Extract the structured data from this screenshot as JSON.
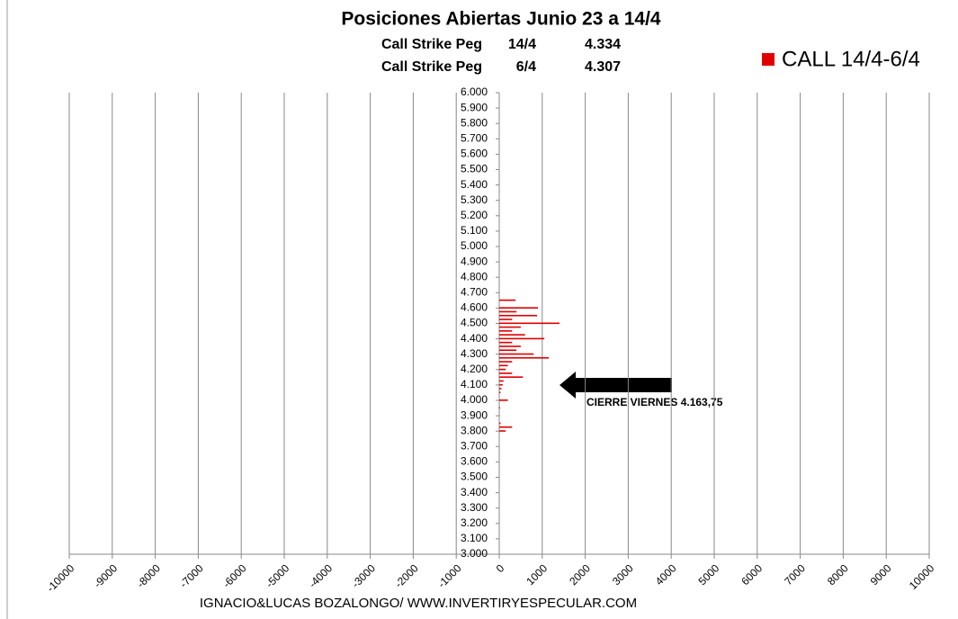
{
  "chart_data": {
    "type": "barh",
    "title": "Posiciones Abiertas Junio 23 a 14/4",
    "peg_rows": [
      {
        "label": "Call Strike Peg",
        "date": "14/4",
        "value": "4.334"
      },
      {
        "label": "Call Strike Peg",
        "date": "6/4",
        "value": "4.307"
      }
    ],
    "annotation": "CIERRE VIERNES 4.163,75",
    "footer": "IGNACIO&LUCAS BOZALONGO/ WWW.INVERTIRYESPECULAR.COM",
    "legend_position": "top-right",
    "grid": true,
    "y": [
      4650,
      4600,
      4575,
      4550,
      4525,
      4500,
      4475,
      4450,
      4425,
      4400,
      4375,
      4350,
      4325,
      4300,
      4275,
      4250,
      4225,
      4200,
      4175,
      4150,
      4125,
      4100,
      4075,
      4050,
      4000,
      3950,
      3900,
      3850,
      3825,
      3800
    ],
    "series": [
      {
        "name": "CALL 14/4-6/4",
        "color": "#e00000",
        "values": [
          380,
          900,
          400,
          880,
          300,
          1400,
          500,
          300,
          600,
          1050,
          300,
          500,
          400,
          800,
          1150,
          300,
          200,
          150,
          300,
          550,
          100,
          80,
          50,
          30,
          200,
          20,
          10,
          30,
          300,
          150
        ]
      }
    ],
    "xlim": [
      -10000,
      10000
    ],
    "xticks": [
      -10000,
      -9000,
      -8000,
      -7000,
      -6000,
      -5000,
      -4000,
      -3000,
      -2000,
      -1000,
      0,
      1000,
      2000,
      3000,
      4000,
      5000,
      6000,
      7000,
      8000,
      9000,
      10000
    ],
    "ylim": [
      3000,
      6000
    ],
    "yticks": [
      {
        "value": 3000,
        "label": "3.000"
      },
      {
        "value": 3100,
        "label": "3.100"
      },
      {
        "value": 3200,
        "label": "3.200"
      },
      {
        "value": 3300,
        "label": "3.300"
      },
      {
        "value": 3400,
        "label": "3.400"
      },
      {
        "value": 3500,
        "label": "3.500"
      },
      {
        "value": 3600,
        "label": "3.600"
      },
      {
        "value": 3700,
        "label": "3.700"
      },
      {
        "value": 3800,
        "label": "3.800"
      },
      {
        "value": 3900,
        "label": "3.900"
      },
      {
        "value": 4000,
        "label": "4.000"
      },
      {
        "value": 4100,
        "label": "4.100"
      },
      {
        "value": 4200,
        "label": "4.200"
      },
      {
        "value": 4300,
        "label": "4.300"
      },
      {
        "value": 4400,
        "label": "4.400"
      },
      {
        "value": 4500,
        "label": "4.500"
      },
      {
        "value": 4600,
        "label": "4.600"
      },
      {
        "value": 4700,
        "label": "4.700"
      },
      {
        "value": 4800,
        "label": "4.800"
      },
      {
        "value": 4900,
        "label": "4.900"
      },
      {
        "value": 5000,
        "label": "5.000"
      },
      {
        "value": 5100,
        "label": "5.100"
      },
      {
        "value": 5200,
        "label": "5.200"
      },
      {
        "value": 5300,
        "label": "5.300"
      },
      {
        "value": 5400,
        "label": "5.400"
      },
      {
        "value": 5500,
        "label": "5.500"
      },
      {
        "value": 5600,
        "label": "5.600"
      },
      {
        "value": 5700,
        "label": "5.700"
      },
      {
        "value": 5800,
        "label": "5.800"
      },
      {
        "value": 5900,
        "label": "5.900"
      },
      {
        "value": 6000,
        "label": "6.000"
      }
    ]
  }
}
